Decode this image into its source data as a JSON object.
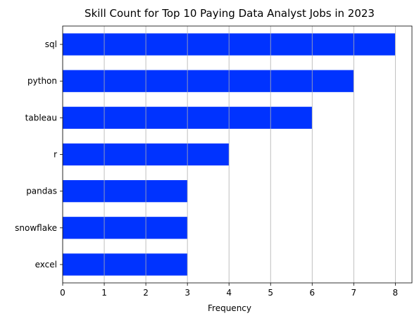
{
  "chart_data": {
    "type": "bar",
    "orientation": "horizontal",
    "title": "Skill Count for Top 10 Paying Data Analyst Jobs in 2023",
    "xlabel": "Frequency",
    "ylabel": "",
    "categories": [
      "sql",
      "python",
      "tableau",
      "r",
      "pandas",
      "snowflake",
      "excel"
    ],
    "values": [
      8,
      7,
      6,
      4,
      3,
      3,
      3
    ],
    "xlim": [
      0,
      8.4
    ],
    "xticks": [
      0,
      1,
      2,
      3,
      4,
      5,
      6,
      7,
      8
    ],
    "grid": "x",
    "legend": "none",
    "bar_color": "#0033ff",
    "grid_color": "#b0b0b0"
  }
}
